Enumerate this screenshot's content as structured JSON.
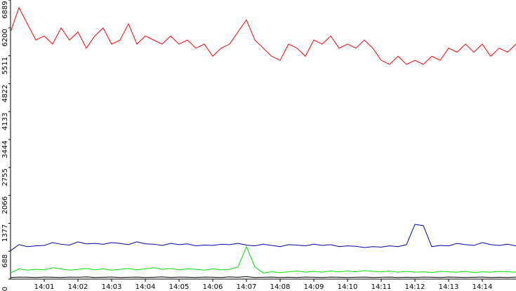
{
  "chart_data": {
    "type": "line",
    "x": [
      0,
      0.25,
      0.5,
      0.75,
      1,
      1.25,
      1.5,
      1.75,
      2,
      2.25,
      2.5,
      2.75,
      3,
      3.25,
      3.5,
      3.75,
      4,
      4.25,
      4.5,
      4.75,
      5,
      5.25,
      5.5,
      5.75,
      6,
      6.25,
      6.5,
      6.75,
      7,
      7.25,
      7.5,
      7.75,
      8,
      8.25,
      8.5,
      8.75,
      9,
      9.25,
      9.5,
      9.75,
      10,
      10.25,
      10.5,
      10.75,
      11,
      11.25,
      11.5,
      11.75,
      12,
      12.25,
      12.5,
      12.75,
      13,
      13.25,
      13.5,
      13.75,
      14,
      14.25,
      14.5,
      14.75,
      15
    ],
    "xlim": [
      0,
      15
    ],
    "xticks": [
      {
        "value": 1,
        "label": "14:01"
      },
      {
        "value": 2,
        "label": "14:02"
      },
      {
        "value": 3,
        "label": "14:03"
      },
      {
        "value": 4,
        "label": "14:04"
      },
      {
        "value": 5,
        "label": "14:05"
      },
      {
        "value": 6,
        "label": "14:06"
      },
      {
        "value": 7,
        "label": "14:07"
      },
      {
        "value": 8,
        "label": "14:08"
      },
      {
        "value": 9,
        "label": "14:09"
      },
      {
        "value": 10,
        "label": "14:10"
      },
      {
        "value": 11,
        "label": "14:11"
      },
      {
        "value": 12,
        "label": "14:12"
      },
      {
        "value": 13,
        "label": "14:13"
      },
      {
        "value": 14,
        "label": "14:14"
      }
    ],
    "ylim": [
      0,
      6889
    ],
    "yticks": [
      0,
      688,
      1377,
      2066,
      2755,
      3444,
      4133,
      4822,
      5511,
      6200,
      6889
    ],
    "series": [
      {
        "color": "#ff0000",
        "values": [
          6100,
          6700,
          6300,
          5900,
          6000,
          5800,
          6200,
          5900,
          6100,
          5700,
          6000,
          6200,
          5800,
          5900,
          6300,
          5800,
          6000,
          5900,
          5800,
          6000,
          5800,
          5900,
          5700,
          5800,
          5500,
          5700,
          5800,
          6100,
          6400,
          5900,
          5700,
          5500,
          5400,
          5800,
          5700,
          5500,
          5900,
          5800,
          6000,
          5700,
          5800,
          5700,
          5900,
          5700,
          5400,
          5300,
          5500,
          5300,
          5400,
          5300,
          5500,
          5400,
          5700,
          5600,
          5800,
          5600,
          5800,
          5500,
          5700,
          5600,
          5800
        ]
      },
      {
        "color": "#0000b0",
        "values": [
          700,
          850,
          800,
          820,
          830,
          900,
          860,
          840,
          920,
          870,
          880,
          860,
          900,
          880,
          850,
          920,
          870,
          860,
          830,
          880,
          850,
          870,
          820,
          840,
          830,
          860,
          850,
          880,
          840,
          820,
          860,
          830,
          800,
          850,
          840,
          820,
          860,
          830,
          850,
          800,
          820,
          810,
          780,
          800,
          790,
          820,
          800,
          850,
          1350,
          1320,
          800,
          830,
          820,
          880,
          850,
          830,
          900,
          850,
          830,
          860,
          820
        ]
      },
      {
        "color": "#00e000",
        "values": [
          150,
          250,
          220,
          240,
          230,
          280,
          250,
          220,
          240,
          260,
          230,
          250,
          220,
          240,
          260,
          230,
          250,
          280,
          240,
          260,
          230,
          250,
          240,
          220,
          250,
          230,
          240,
          300,
          800,
          300,
          150,
          180,
          160,
          180,
          200,
          170,
          190,
          170,
          200,
          180,
          200,
          180,
          210,
          190,
          180,
          200,
          170,
          190,
          170,
          180,
          160,
          190,
          180,
          170,
          190,
          160,
          180,
          170,
          190,
          180,
          170
        ]
      },
      {
        "color": "#000000",
        "values": [
          40,
          50,
          45,
          40,
          50,
          45,
          40,
          50,
          45,
          55,
          40,
          45,
          50,
          40,
          45,
          50,
          40,
          45,
          55,
          40,
          50,
          45,
          40,
          50,
          45,
          40,
          55,
          45,
          60,
          40,
          45,
          50,
          40,
          45,
          40,
          50,
          45,
          40,
          50,
          45,
          40,
          45,
          50,
          40,
          45,
          50,
          40,
          45,
          40,
          50,
          45,
          40,
          50,
          45,
          40,
          45,
          50,
          40,
          45,
          40,
          50
        ]
      }
    ]
  }
}
